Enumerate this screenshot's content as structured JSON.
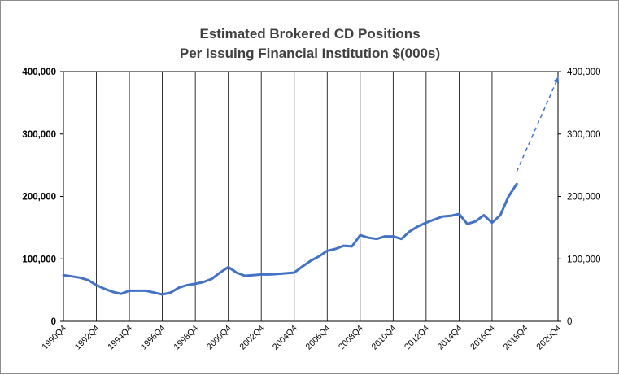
{
  "chart_data": {
    "type": "line",
    "title": "Estimated Brokered CD Positions",
    "subtitle": "Per Issuing Financial Institution $(000s)",
    "xlabel": "",
    "ylabel": "",
    "x_tick_labels": [
      "1990Q4",
      "1992Q4",
      "1994Q4",
      "1996Q4",
      "1998Q4",
      "2000Q4",
      "2002Q4",
      "2004Q4",
      "2006Q4",
      "2008Q4",
      "2010Q4",
      "2012Q4",
      "2014Q4",
      "2016Q4",
      "2018Q4",
      "2020Q4"
    ],
    "y_tick_labels": [
      "0",
      "100,000",
      "200,000",
      "300,000",
      "400,000"
    ],
    "y2_tick_labels": [
      "0",
      "100,000",
      "200,000",
      "300,000",
      "400,000"
    ],
    "xlim": [
      "1990Q4",
      "2020Q4"
    ],
    "ylim": [
      0,
      400000
    ],
    "grid": "vertical lines at each x tick",
    "colors": {
      "series": "#4472c4",
      "grid": "#000000"
    },
    "series": [
      {
        "style": "solid",
        "x": [
          "1990Q4",
          "1991Q2",
          "1991Q4",
          "1992Q2",
          "1992Q4",
          "1993Q2",
          "1993Q4",
          "1994Q2",
          "1994Q4",
          "1995Q2",
          "1995Q4",
          "1996Q2",
          "1996Q4",
          "1997Q2",
          "1997Q4",
          "1998Q2",
          "1998Q4",
          "1999Q2",
          "1999Q4",
          "2000Q2",
          "2000Q4",
          "2001Q2",
          "2001Q4",
          "2002Q2",
          "2002Q4",
          "2003Q2",
          "2003Q4",
          "2004Q2",
          "2004Q4",
          "2005Q2",
          "2005Q4",
          "2006Q2",
          "2006Q4",
          "2007Q2",
          "2007Q4",
          "2008Q2",
          "2008Q4",
          "2009Q2",
          "2009Q4",
          "2010Q2",
          "2010Q4",
          "2011Q2",
          "2011Q4",
          "2012Q2",
          "2012Q4",
          "2013Q2",
          "2013Q4",
          "2014Q2",
          "2014Q4",
          "2015Q2",
          "2015Q4",
          "2016Q2",
          "2016Q4",
          "2017Q2",
          "2017Q4",
          "2018Q2"
        ],
        "values": [
          74000,
          72000,
          70000,
          66000,
          58000,
          52000,
          47000,
          44000,
          49000,
          49000,
          49000,
          46000,
          43000,
          46000,
          54000,
          58000,
          60000,
          63000,
          68000,
          78000,
          87000,
          78000,
          73000,
          74000,
          75000,
          75000,
          76000,
          77000,
          78000,
          88000,
          97000,
          104000,
          113000,
          116000,
          121000,
          120000,
          138000,
          134000,
          132000,
          136000,
          136000,
          132000,
          144000,
          152000,
          158000,
          163000,
          168000,
          169000,
          172000,
          156000,
          160000,
          170000,
          158000,
          170000,
          200000,
          220000
        ]
      },
      {
        "style": "dashed",
        "x": [
          "2018Q2",
          "2020Q4"
        ],
        "values": [
          240000,
          390000
        ]
      }
    ]
  }
}
